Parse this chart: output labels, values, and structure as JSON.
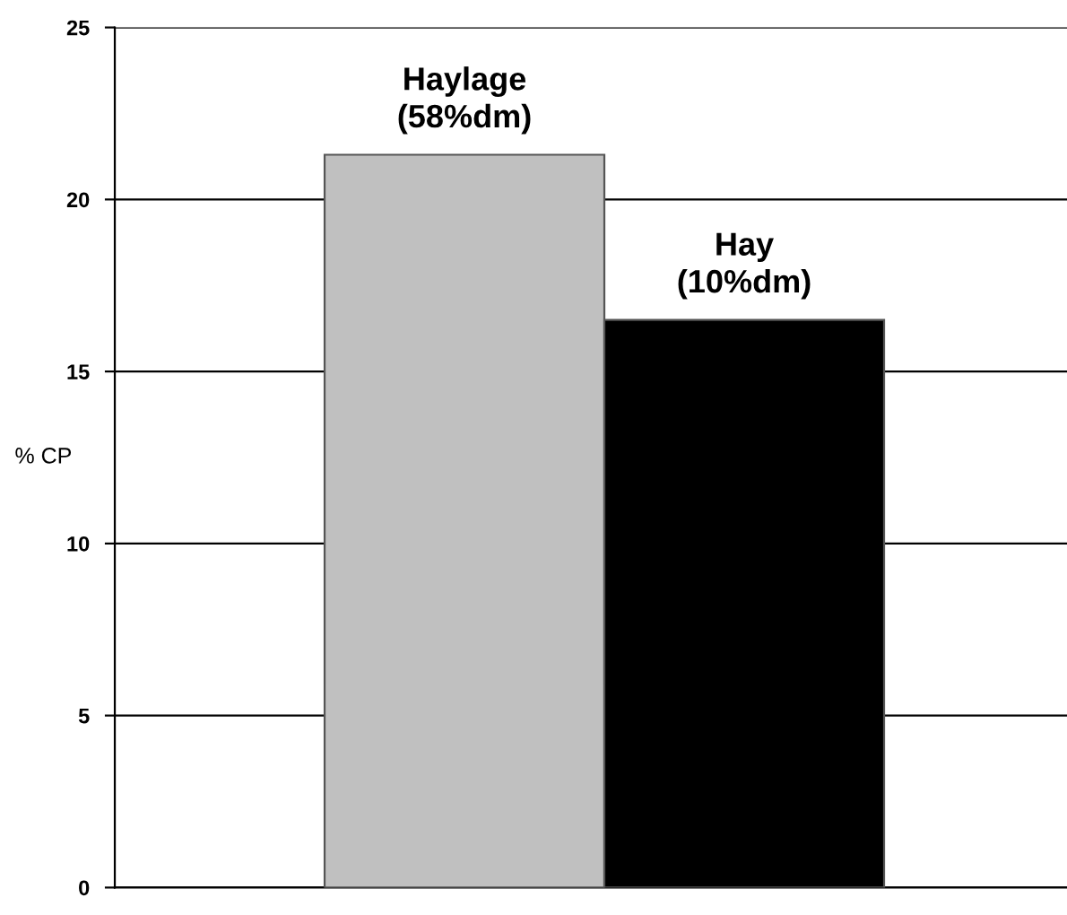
{
  "chart_data": {
    "type": "bar",
    "ylabel": "% CP",
    "categories": [
      null
    ],
    "series": [
      {
        "name": "Haylage\n(58%dm)",
        "color": "#c0c0c0",
        "values": [
          21.3
        ]
      },
      {
        "name": "Hay\n(10%dm)",
        "color": "#000000",
        "values": [
          16.5
        ]
      }
    ],
    "ylim": [
      0,
      25
    ],
    "yticks": [
      0,
      5,
      10,
      15,
      20,
      25
    ],
    "grid": "y",
    "legend": false
  }
}
